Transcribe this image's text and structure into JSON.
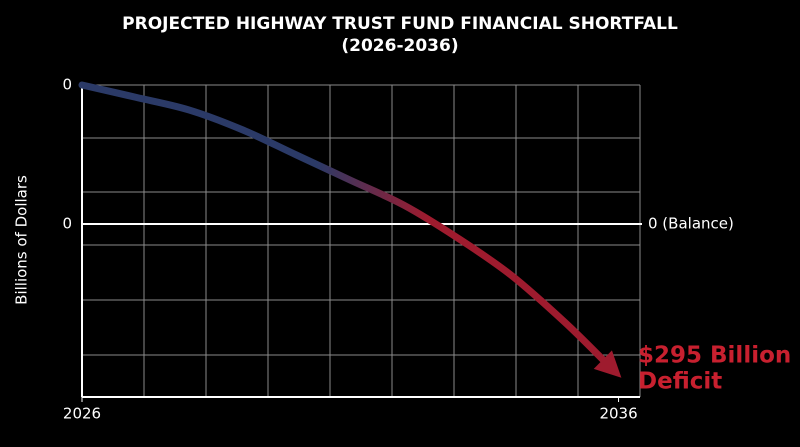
{
  "chart_data": {
    "type": "line",
    "title": "PROJECTED HIGHWAY TRUST FUND FINANCIAL SHORTFALL",
    "subtitle": "(2026-2036)",
    "y_label": "Billions of Dollars",
    "y_tick_texts": [
      "0",
      "0"
    ],
    "balance_label": "0 (Balance)",
    "annotation": [
      "$295 Billion",
      "Deficit"
    ],
    "annotation_color": "#c8202f",
    "x": [
      2026,
      2027,
      2028,
      2029,
      2030,
      2031,
      2032,
      2033,
      2034,
      2035,
      2036
    ],
    "series": [
      {
        "colors": [
          "#2b3a67",
          "#9e1b2e"
        ],
        "values": [
          272,
          248,
          223,
          184,
          135,
          86,
          37,
          -27,
          -100,
          -192,
          -295
        ]
      }
    ],
    "xlim": [
      2026,
      2036.4
    ],
    "ylim": [
      -338,
      272
    ],
    "xticks": [
      2026,
      2036
    ],
    "grid": true
  }
}
